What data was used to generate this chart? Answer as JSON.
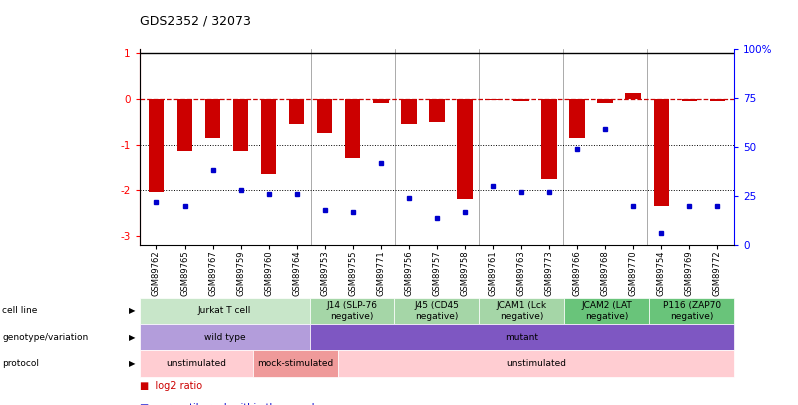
{
  "title": "GDS2352 / 32073",
  "samples": [
    "GSM89762",
    "GSM89765",
    "GSM89767",
    "GSM89759",
    "GSM89760",
    "GSM89764",
    "GSM89753",
    "GSM89755",
    "GSM89771",
    "GSM89756",
    "GSM89757",
    "GSM89758",
    "GSM89761",
    "GSM89763",
    "GSM89773",
    "GSM89766",
    "GSM89768",
    "GSM89770",
    "GSM89754",
    "GSM89769",
    "GSM89772"
  ],
  "log2_ratio": [
    -2.05,
    -1.15,
    -0.85,
    -1.15,
    -1.65,
    -0.55,
    -0.75,
    -1.3,
    -0.1,
    -0.55,
    -0.5,
    -2.2,
    -0.02,
    -0.05,
    -1.75,
    -0.85,
    -0.1,
    0.12,
    -2.35,
    -0.05,
    -0.05
  ],
  "percentile": [
    22,
    20,
    38,
    28,
    26,
    26,
    18,
    17,
    42,
    24,
    14,
    17,
    30,
    27,
    27,
    49,
    59,
    20,
    6,
    20,
    20
  ],
  "cell_line_groups": [
    {
      "label": "Jurkat T cell",
      "start": 0,
      "end": 6,
      "color": "#c8e6c9"
    },
    {
      "label": "J14 (SLP-76\nnegative)",
      "start": 6,
      "end": 9,
      "color": "#a5d6a7"
    },
    {
      "label": "J45 (CD45\nnegative)",
      "start": 9,
      "end": 12,
      "color": "#a5d6a7"
    },
    {
      "label": "JCAM1 (Lck\nnegative)",
      "start": 12,
      "end": 15,
      "color": "#a5d6a7"
    },
    {
      "label": "JCAM2 (LAT\nnegative)",
      "start": 15,
      "end": 18,
      "color": "#69c47a"
    },
    {
      "label": "P116 (ZAP70\nnegative)",
      "start": 18,
      "end": 21,
      "color": "#69c47a"
    }
  ],
  "genotype_groups": [
    {
      "label": "wild type",
      "start": 0,
      "end": 6,
      "color": "#b39ddb"
    },
    {
      "label": "mutant",
      "start": 6,
      "end": 21,
      "color": "#7e57c2"
    }
  ],
  "protocol_groups": [
    {
      "label": "unstimulated",
      "start": 0,
      "end": 4,
      "color": "#ffcdd2"
    },
    {
      "label": "mock-stimulated",
      "start": 4,
      "end": 7,
      "color": "#ef9a9a"
    },
    {
      "label": "unstimulated",
      "start": 7,
      "end": 21,
      "color": "#ffcdd2"
    }
  ],
  "bar_color": "#cc0000",
  "dot_color": "#0000cc",
  "dashed_color": "#cc0000",
  "left_ylim": [
    -3.2,
    1.1
  ],
  "right_ylim": [
    0,
    100
  ],
  "left_yticks": [
    1,
    0,
    -1,
    -2,
    -3
  ],
  "right_yticks": [
    0,
    25,
    50,
    75,
    100
  ],
  "right_yticklabels": [
    "0",
    "25",
    "50",
    "75",
    "100%"
  ],
  "group_borders": [
    6,
    9,
    12,
    15,
    18
  ]
}
